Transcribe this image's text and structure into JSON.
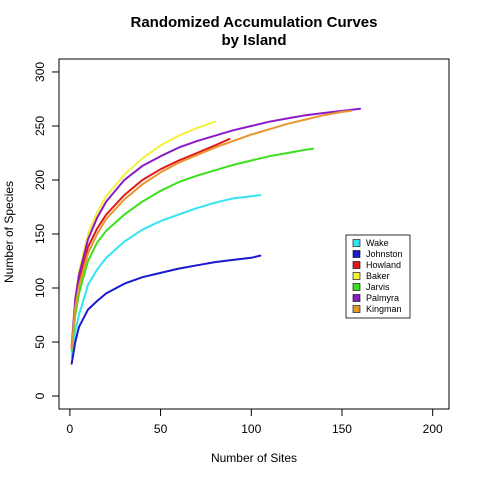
{
  "chart_data": {
    "type": "line",
    "title_line1": "Randomized Accumulation Curves",
    "title_line2": "by Island",
    "xlabel": "Number of Sites",
    "ylabel": "Number of Species",
    "xlim": [
      -6,
      209
    ],
    "ylim": [
      -12,
      312
    ],
    "xticks": [
      0,
      50,
      100,
      150,
      200
    ],
    "yticks": [
      0,
      50,
      100,
      150,
      200,
      250,
      300
    ],
    "legend_position": "right",
    "series": [
      {
        "name": "Wake",
        "color": "#33E5F2",
        "points": [
          [
            1,
            36
          ],
          [
            3,
            60
          ],
          [
            5,
            75
          ],
          [
            10,
            103
          ],
          [
            15,
            117
          ],
          [
            20,
            128
          ],
          [
            30,
            143
          ],
          [
            40,
            154
          ],
          [
            50,
            162
          ],
          [
            60,
            168
          ],
          [
            70,
            174
          ],
          [
            80,
            179
          ],
          [
            90,
            183
          ],
          [
            100,
            185
          ],
          [
            105,
            186
          ]
        ]
      },
      {
        "name": "Johnston",
        "color": "#1A1ACC",
        "points": [
          [
            1,
            30
          ],
          [
            3,
            50
          ],
          [
            5,
            64
          ],
          [
            10,
            80
          ],
          [
            15,
            88
          ],
          [
            20,
            95
          ],
          [
            30,
            104
          ],
          [
            40,
            110
          ],
          [
            50,
            114
          ],
          [
            60,
            118
          ],
          [
            70,
            121
          ],
          [
            80,
            124
          ],
          [
            90,
            126
          ],
          [
            100,
            128
          ],
          [
            105,
            130
          ]
        ]
      },
      {
        "name": "Howland",
        "color": "#E01B1B",
        "points": [
          [
            1,
            45
          ],
          [
            3,
            85
          ],
          [
            5,
            105
          ],
          [
            10,
            138
          ],
          [
            15,
            155
          ],
          [
            20,
            168
          ],
          [
            30,
            186
          ],
          [
            40,
            200
          ],
          [
            50,
            210
          ],
          [
            60,
            218
          ],
          [
            70,
            225
          ],
          [
            80,
            232
          ],
          [
            88,
            238
          ]
        ]
      },
      {
        "name": "Baker",
        "color": "#F2F23A",
        "points": [
          [
            1,
            48
          ],
          [
            3,
            90
          ],
          [
            5,
            115
          ],
          [
            10,
            150
          ],
          [
            15,
            170
          ],
          [
            20,
            185
          ],
          [
            30,
            205
          ],
          [
            40,
            220
          ],
          [
            50,
            232
          ],
          [
            60,
            241
          ],
          [
            70,
            248
          ],
          [
            80,
            254
          ]
        ]
      },
      {
        "name": "Jarvis",
        "color": "#3AE01B",
        "points": [
          [
            1,
            42
          ],
          [
            3,
            75
          ],
          [
            5,
            95
          ],
          [
            10,
            125
          ],
          [
            15,
            142
          ],
          [
            20,
            153
          ],
          [
            30,
            168
          ],
          [
            40,
            180
          ],
          [
            50,
            190
          ],
          [
            60,
            198
          ],
          [
            70,
            204
          ],
          [
            80,
            209
          ],
          [
            90,
            214
          ],
          [
            100,
            218
          ],
          [
            110,
            222
          ],
          [
            120,
            225
          ],
          [
            130,
            228
          ],
          [
            134,
            229
          ]
        ]
      },
      {
        "name": "Palmyra",
        "color": "#8A1BC8",
        "points": [
          [
            1,
            46
          ],
          [
            3,
            90
          ],
          [
            5,
            112
          ],
          [
            10,
            145
          ],
          [
            15,
            165
          ],
          [
            20,
            180
          ],
          [
            30,
            200
          ],
          [
            40,
            213
          ],
          [
            50,
            222
          ],
          [
            60,
            230
          ],
          [
            70,
            236
          ],
          [
            80,
            241
          ],
          [
            90,
            246
          ],
          [
            100,
            250
          ],
          [
            110,
            254
          ],
          [
            120,
            257
          ],
          [
            130,
            260
          ],
          [
            140,
            262
          ],
          [
            150,
            264
          ],
          [
            160,
            266
          ]
        ]
      },
      {
        "name": "Kingman",
        "color": "#E8962E",
        "points": [
          [
            1,
            44
          ],
          [
            3,
            82
          ],
          [
            5,
            102
          ],
          [
            10,
            132
          ],
          [
            15,
            150
          ],
          [
            20,
            164
          ],
          [
            30,
            182
          ],
          [
            40,
            196
          ],
          [
            50,
            207
          ],
          [
            60,
            216
          ],
          [
            70,
            223
          ],
          [
            80,
            230
          ],
          [
            90,
            236
          ],
          [
            100,
            242
          ],
          [
            110,
            247
          ],
          [
            120,
            252
          ],
          [
            130,
            256
          ],
          [
            140,
            260
          ],
          [
            150,
            263
          ],
          [
            155,
            264
          ]
        ]
      }
    ]
  }
}
